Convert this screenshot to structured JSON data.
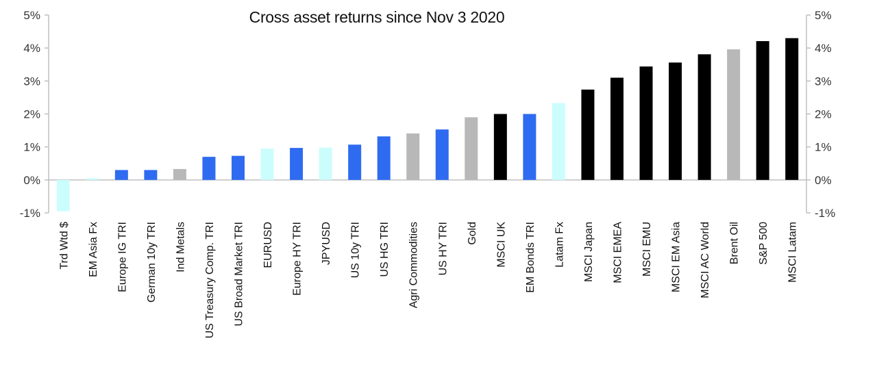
{
  "chart_data": {
    "type": "bar",
    "title": "Cross asset returns since Nov 3 2020",
    "xlabel": "",
    "ylabel": "",
    "ylim": [
      -1,
      5
    ],
    "yticks": [
      -1,
      0,
      1,
      2,
      3,
      4,
      5
    ],
    "ytick_labels": [
      "-1%",
      "0%",
      "1%",
      "2%",
      "3%",
      "4%",
      "5%"
    ],
    "secondary_y_axis": true,
    "grid": false,
    "legend": "none",
    "colors": {
      "fx": "#ccfdfd",
      "bonds": "#2f6bf0",
      "commodities": "#b8b8b8",
      "equities": "#000000",
      "axis": "#bfbfbf"
    },
    "categories": [
      "Trd Wtd $",
      "EM Asia Fx",
      "Europe IG TRI",
      "German 10y TRI",
      "Ind Metals",
      "US Treasury Comp. TRI",
      "US Broad Market TRI",
      "EURUSD",
      "Europe HY TRI",
      "JPYUSD",
      "US 10y TRI",
      "US HG TRI",
      "Agri Commodities",
      "US HY TRI",
      "Gold",
      "MSCI UK",
      "EM Bonds TRI",
      "Latam Fx",
      "MSCI Japan",
      "MSCI EMEA",
      "MSCI EMU",
      "MSCI EM Asia",
      "MSCI AC World",
      "Brent Oil",
      "S&P 500",
      "MSCI Latam"
    ],
    "values": [
      -0.95,
      0.05,
      0.3,
      0.3,
      0.33,
      0.7,
      0.73,
      0.95,
      0.97,
      0.98,
      1.07,
      1.32,
      1.41,
      1.53,
      1.9,
      2.0,
      2.0,
      2.33,
      2.74,
      3.1,
      3.44,
      3.56,
      3.81,
      3.96,
      4.21,
      4.3
    ],
    "bar_groups": [
      "fx",
      "fx",
      "bonds",
      "bonds",
      "commodities",
      "bonds",
      "bonds",
      "fx",
      "bonds",
      "fx",
      "bonds",
      "bonds",
      "commodities",
      "bonds",
      "commodities",
      "equities",
      "bonds",
      "fx",
      "equities",
      "equities",
      "equities",
      "equities",
      "equities",
      "commodities",
      "equities",
      "equities"
    ]
  }
}
